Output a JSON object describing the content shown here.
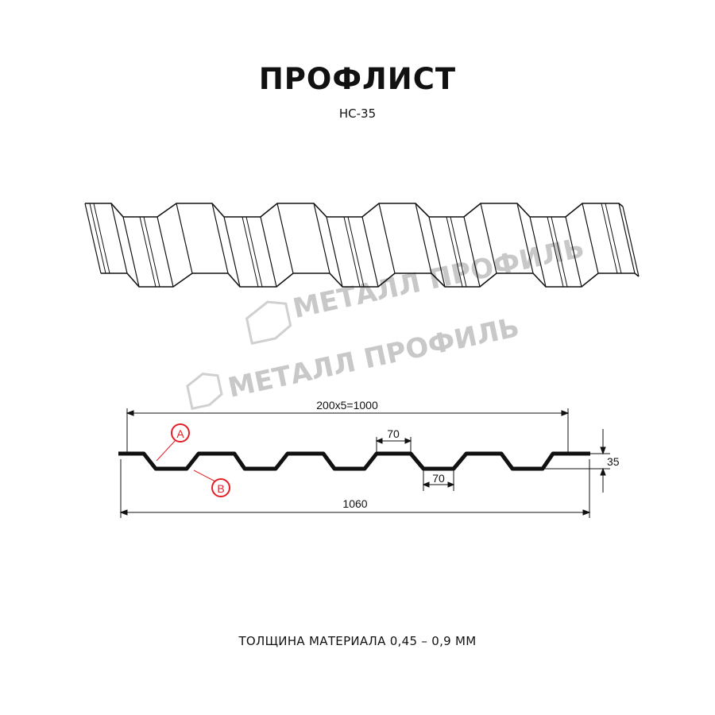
{
  "header": {
    "title": "ПРОФЛИСТ",
    "subtitle": "НС-35"
  },
  "watermark": {
    "text": "МЕТАЛЛ ПРОФИЛЬ"
  },
  "cross_section": {
    "dimensions": {
      "pitch_total": "200x5=1000",
      "overall_width": "1060",
      "height": "35",
      "top_rib": "70",
      "bottom_rib": "70"
    },
    "markers": {
      "a": "A",
      "b": "B"
    },
    "marker_color": "#e31e24"
  },
  "footer": {
    "thickness_note": "ТОЛЩИНА МАТЕРИАЛА 0,45 – 0,9 ММ"
  }
}
